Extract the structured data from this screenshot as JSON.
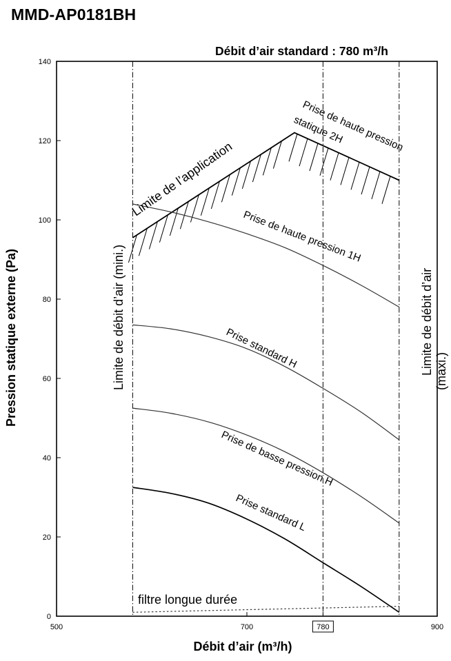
{
  "model": "MMD-AP0181BH",
  "standard_flow_text": "Débit d’air standard : 780 m³/h",
  "chart_data": {
    "type": "line",
    "xlabel": "Débit d’air (m³/h)",
    "ylabel": "Pression statique externe (Pa)",
    "xlim": [
      500,
      900
    ],
    "ylim": [
      0,
      140
    ],
    "x_ticks": [
      500,
      700,
      780,
      900
    ],
    "x_tick_labels": [
      "500",
      "700",
      "780",
      "900"
    ],
    "x_tick_boxed": "780",
    "y_ticks": [
      0,
      20,
      40,
      60,
      80,
      100,
      120,
      140
    ],
    "y_tick_labels": [
      "0",
      "20",
      "40",
      "60",
      "80",
      "100",
      "120",
      "140"
    ],
    "vertical_lines": [
      {
        "x": 580,
        "label": "Limite de débit d’air (mini.)"
      },
      {
        "x": 780,
        "label": ""
      },
      {
        "x": 860,
        "label": "Limite de débit d’air (maxi.)"
      }
    ],
    "application_limit": {
      "label": "Limite de l’application",
      "x": [
        580,
        750,
        860
      ],
      "y": [
        95.5,
        122,
        110
      ]
    },
    "series": [
      {
        "name": "Prise de haute pression statique 2H",
        "x": [
          750,
          780,
          820,
          860
        ],
        "y": [
          122,
          119,
          115,
          110
        ]
      },
      {
        "name": "Prise de haute pression 1H",
        "x": [
          580,
          620,
          660,
          700,
          740,
          780,
          820,
          860
        ],
        "y": [
          104,
          102,
          99.5,
          96.5,
          93,
          88.5,
          83.5,
          78
        ]
      },
      {
        "name": "Prise standard H",
        "x": [
          580,
          620,
          660,
          700,
          740,
          780,
          820,
          860
        ],
        "y": [
          73.5,
          72.5,
          70.5,
          67.5,
          63,
          57.5,
          51.5,
          44.5
        ]
      },
      {
        "name": "Prise de basse pression H",
        "x": [
          580,
          620,
          660,
          700,
          740,
          780,
          820,
          860
        ],
        "y": [
          52.5,
          51.2,
          49,
          45.7,
          41.5,
          36.2,
          30.2,
          23.5
        ]
      },
      {
        "name": "Prise standard L",
        "x": [
          580,
          620,
          660,
          700,
          740,
          780,
          820,
          860
        ],
        "y": [
          32.5,
          31,
          28.5,
          24.5,
          19.5,
          13.5,
          7.5,
          1
        ]
      },
      {
        "name": "filtre longue durée",
        "x": [
          580,
          860
        ],
        "y": [
          1,
          2.5
        ]
      }
    ]
  }
}
